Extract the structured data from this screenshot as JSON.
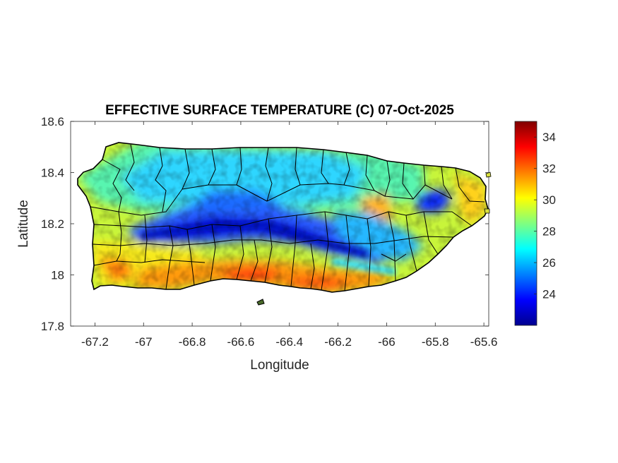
{
  "chart_data": {
    "type": "heatmap",
    "title": "EFFECTIVE SURFACE TEMPERATURE (C) 07-Oct-2025",
    "xlabel": "Longitude",
    "ylabel": "Latitude",
    "xlim": [
      -67.3,
      -65.58
    ],
    "ylim": [
      17.8,
      18.6
    ],
    "x_ticks": [
      -67.2,
      -67,
      -66.8,
      -66.6,
      -66.4,
      -66.2,
      -66,
      -65.8,
      -65.6
    ],
    "x_tick_labels": [
      "-67.2",
      "-67",
      "-66.8",
      "-66.6",
      "-66.4",
      "-66.2",
      "-66",
      "-65.8",
      "-65.6"
    ],
    "y_ticks": [
      17.8,
      18,
      18.2,
      18.4,
      18.6
    ],
    "y_tick_labels": [
      "17.8",
      "18",
      "18.2",
      "18.4",
      "18.6"
    ],
    "colorbar": {
      "colormap": "jet",
      "clim": [
        22,
        35
      ],
      "ticks": [
        24,
        26,
        28,
        30,
        32,
        34
      ],
      "tick_labels": [
        "24",
        "26",
        "28",
        "30",
        "32",
        "34"
      ]
    },
    "grid": false,
    "temperature_pattern": {
      "north_coast_c": 27.5,
      "central_mountains_c": 23.5,
      "southwest_coast_c": 30.5,
      "south_coast_c": 32.5,
      "east_coast_c": 29.5,
      "el_yunque_c": 24
    }
  }
}
